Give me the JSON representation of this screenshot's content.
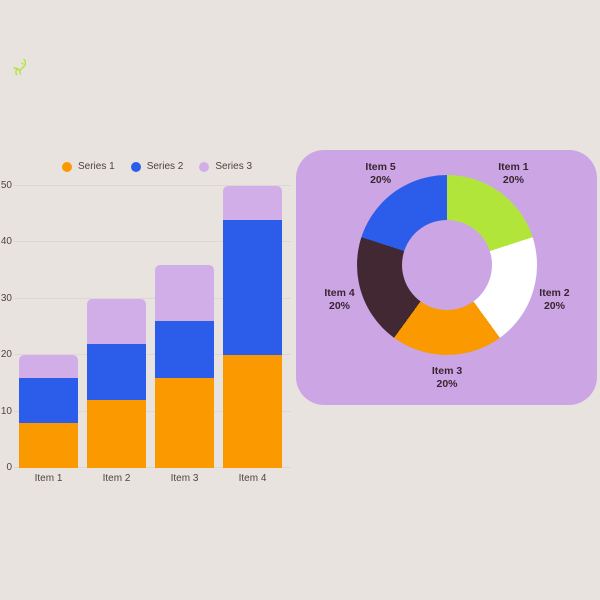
{
  "page": {
    "background": "#e8e3df",
    "logo_color": "#b2e53a"
  },
  "chart_data": [
    {
      "type": "bar",
      "stacked": true,
      "title": "",
      "categories": [
        "Item 1",
        "Item 2",
        "Item 3",
        "Item 4"
      ],
      "series": [
        {
          "name": "Series 1",
          "color": "#fb9900",
          "values": [
            8,
            12,
            16,
            20
          ]
        },
        {
          "name": "Series 2",
          "color": "#2b5cea",
          "values": [
            8,
            10,
            10,
            24
          ]
        },
        {
          "name": "Series 3",
          "color": "#d2aee9",
          "values": [
            4,
            8,
            10,
            6
          ]
        }
      ],
      "ylim": [
        0,
        50
      ],
      "y_ticks": [
        0,
        10,
        20,
        30,
        40,
        50
      ],
      "grid": true,
      "gridline_color": "#dcd7d2",
      "axis_text_color": "#52453e",
      "legend_position": "top"
    },
    {
      "type": "pie",
      "donut": true,
      "hole_ratio": 0.5,
      "start_angle_deg": 0,
      "direction": "clockwise",
      "labels": [
        "Item 1",
        "Item 2",
        "Item 3",
        "Item 4",
        "Item 5"
      ],
      "values": [
        20,
        20,
        20,
        20,
        20
      ],
      "percent_labels": [
        "20%",
        "20%",
        "20%",
        "20%",
        "20%"
      ],
      "colors": [
        "#b2e53a",
        "#ffffff",
        "#fb9900",
        "#422832",
        "#2b5cea"
      ],
      "panel_color": "#cca5e5",
      "label_color": "#3a2430"
    }
  ]
}
